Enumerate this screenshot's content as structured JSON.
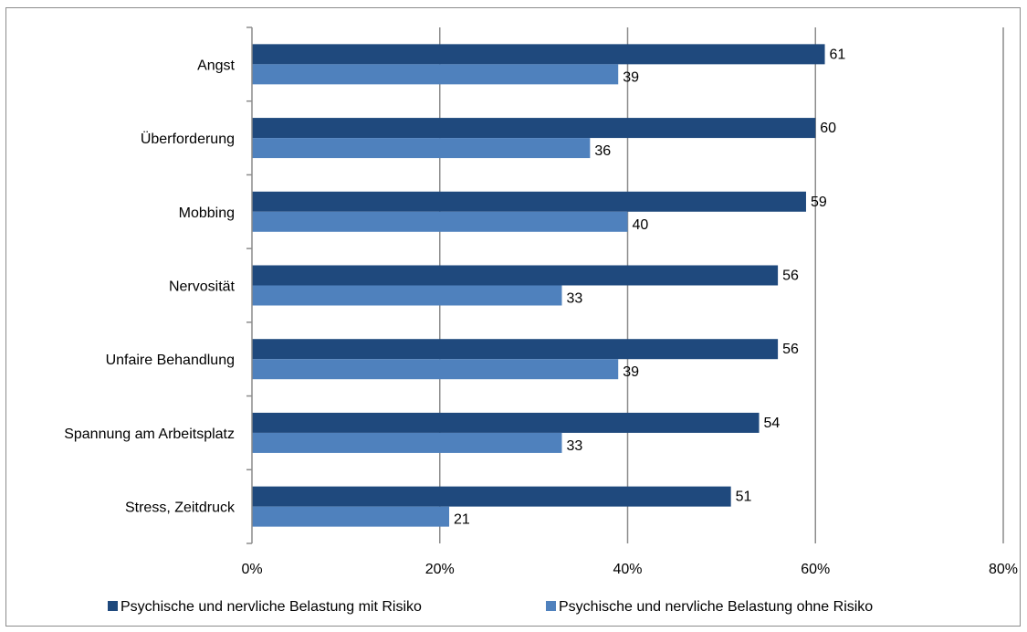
{
  "chart_data": {
    "type": "bar",
    "orientation": "horizontal",
    "categories": [
      "Angst",
      "Überforderung",
      "Mobbing",
      "Nervosität",
      "Unfaire Behandlung",
      "Spannung am Arbeitsplatz",
      "Stress, Zeitdruck"
    ],
    "series": [
      {
        "name": "Psychische und nervliche Belastung mit Risiko",
        "color": "#1f497d",
        "values": [
          61,
          60,
          59,
          56,
          56,
          54,
          51
        ],
        "labels": [
          "61",
          "60",
          "59",
          "56",
          "56",
          "54",
          "51"
        ]
      },
      {
        "name": "Psychische und nervliche Belastung ohne Risiko",
        "color": "#4f81bd",
        "values": [
          39,
          36,
          40,
          33,
          39,
          33,
          21
        ],
        "labels": [
          "39",
          "36",
          "40",
          "33",
          "39",
          "33",
          "21"
        ]
      }
    ],
    "xlim": [
      0,
      80
    ],
    "xticks": [
      0,
      20,
      40,
      60,
      80
    ],
    "xtick_labels": [
      "0%",
      "20%",
      "40%",
      "60%",
      "80%"
    ],
    "grid": true,
    "legend_position": "bottom"
  }
}
